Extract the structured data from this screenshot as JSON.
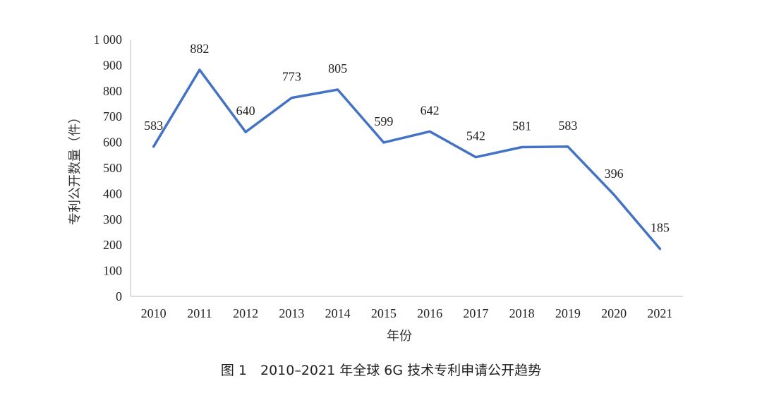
{
  "chart_data": {
    "type": "line",
    "categories": [
      "2010",
      "2011",
      "2012",
      "2013",
      "2014",
      "2015",
      "2016",
      "2017",
      "2018",
      "2019",
      "2020",
      "2021"
    ],
    "values": [
      583,
      882,
      640,
      773,
      805,
      599,
      642,
      542,
      581,
      583,
      396,
      185
    ],
    "data_labels": [
      "583",
      "882",
      "640",
      "773",
      "805",
      "599",
      "642",
      "542",
      "581",
      "583",
      "396",
      "185"
    ],
    "xlabel": "年份",
    "ylabel": "专利公开数量（件）",
    "ylim": [
      0,
      1000
    ],
    "yticks": [
      0,
      100,
      200,
      300,
      400,
      500,
      600,
      700,
      800,
      900,
      1000
    ],
    "ytick_labels": [
      "0",
      "100",
      "200",
      "300",
      "400",
      "500",
      "600",
      "700",
      "800",
      "900",
      "1 000"
    ],
    "line_color": "#4472C4",
    "grid": false
  },
  "caption": "图 1　2010–2021 年全球 6G 技术专利申请公开趋势"
}
